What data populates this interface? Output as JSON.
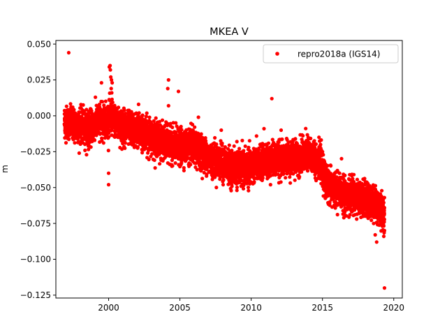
{
  "chart_data": {
    "type": "scatter",
    "title": "MKEA V",
    "xlabel": "",
    "ylabel": "m",
    "xlim": [
      1996.3,
      2020.6
    ],
    "ylim": [
      -0.127,
      0.0525
    ],
    "xticks": [
      2000,
      2005,
      2010,
      2015,
      2020
    ],
    "xtick_labels": [
      "2000",
      "2005",
      "2010",
      "2015",
      "2020"
    ],
    "yticks": [
      0.05,
      0.025,
      0.0,
      -0.025,
      -0.05,
      -0.075,
      -0.1,
      -0.125
    ],
    "ytick_labels": [
      "0.050",
      "0.025",
      "0.000",
      "−0.025",
      "−0.050",
      "−0.075",
      "−0.100",
      "−0.125"
    ],
    "grid": false,
    "legend_position": "top-right",
    "series": [
      {
        "name": "repro2018a (IGS14)",
        "color": "#ff0000",
        "marker": "circle",
        "trend_points": [
          [
            1996.9,
            -0.004
          ],
          [
            1997.5,
            -0.006
          ],
          [
            1998.0,
            -0.007
          ],
          [
            1998.6,
            -0.009
          ],
          [
            1999.2,
            -0.004
          ],
          [
            1999.8,
            -0.003
          ],
          [
            2000.2,
            -0.001
          ],
          [
            2000.7,
            -0.006
          ],
          [
            2001.3,
            -0.009
          ],
          [
            2002.0,
            -0.01
          ],
          [
            2002.8,
            -0.013
          ],
          [
            2003.5,
            -0.017
          ],
          [
            2004.2,
            -0.02
          ],
          [
            2005.0,
            -0.022
          ],
          [
            2005.8,
            -0.021
          ],
          [
            2006.5,
            -0.025
          ],
          [
            2007.2,
            -0.03
          ],
          [
            2008.0,
            -0.033
          ],
          [
            2008.7,
            -0.036
          ],
          [
            2009.5,
            -0.037
          ],
          [
            2010.3,
            -0.034
          ],
          [
            2011.0,
            -0.032
          ],
          [
            2011.8,
            -0.03
          ],
          [
            2012.5,
            -0.03
          ],
          [
            2013.2,
            -0.029
          ],
          [
            2013.8,
            -0.027
          ],
          [
            2014.4,
            -0.029
          ],
          [
            2014.85,
            -0.032
          ],
          [
            2015.2,
            -0.046
          ],
          [
            2015.6,
            -0.05
          ],
          [
            2016.2,
            -0.053
          ],
          [
            2016.8,
            -0.055
          ],
          [
            2017.4,
            -0.057
          ],
          [
            2018.0,
            -0.058
          ],
          [
            2018.6,
            -0.061
          ],
          [
            2019.0,
            -0.064
          ],
          [
            2019.35,
            -0.068
          ]
        ],
        "noise_sd": 0.0055,
        "count": 7600,
        "outliers": [
          [
            1997.2,
            0.044
          ],
          [
            1999.5,
            0.023
          ],
          [
            2000.05,
            0.034
          ],
          [
            2000.1,
            0.035
          ],
          [
            2000.12,
            0.032
          ],
          [
            2000.15,
            0.027
          ],
          [
            2000.2,
            0.025
          ],
          [
            2000.25,
            0.023
          ],
          [
            2000.18,
            0.019
          ],
          [
            2000.22,
            0.016
          ],
          [
            2000.0,
            -0.04
          ],
          [
            2000.0,
            -0.048
          ],
          [
            2004.2,
            0.025
          ],
          [
            2004.15,
            0.019
          ],
          [
            2004.9,
            0.017
          ],
          [
            2004.2,
            0.007
          ],
          [
            2002.1,
            0.008
          ],
          [
            2006.3,
            -0.001
          ],
          [
            2007.9,
            -0.01
          ],
          [
            2009.0,
            -0.018
          ],
          [
            2009.0,
            -0.052
          ],
          [
            2010.9,
            -0.009
          ],
          [
            2011.45,
            0.012
          ],
          [
            2012.1,
            -0.01
          ],
          [
            2013.1,
            -0.016
          ],
          [
            2014.0,
            -0.015
          ],
          [
            2016.5,
            -0.071
          ],
          [
            2017.4,
            -0.072
          ],
          [
            2018.7,
            -0.083
          ],
          [
            2018.8,
            -0.088
          ],
          [
            2019.3,
            -0.084
          ],
          [
            2019.35,
            -0.08
          ],
          [
            2019.35,
            -0.12
          ],
          [
            2015.15,
            -0.039
          ],
          [
            2016.2,
            -0.04
          ],
          [
            2017.2,
            -0.041
          ]
        ]
      }
    ]
  }
}
